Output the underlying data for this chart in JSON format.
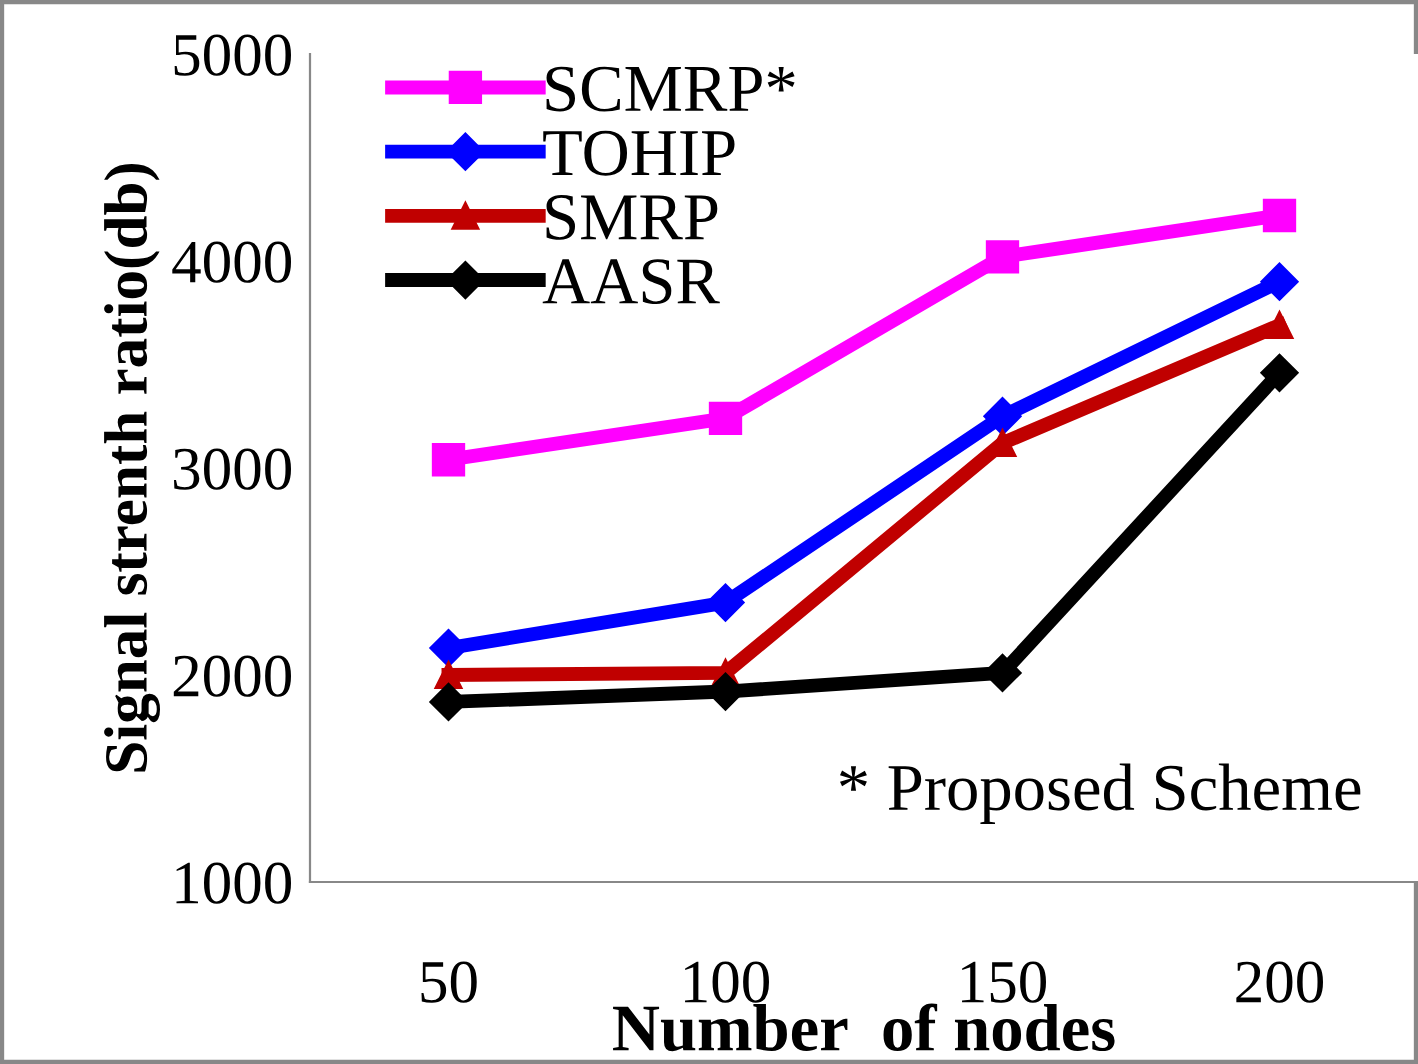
{
  "chart_data": {
    "type": "line",
    "xlabel": "Number  of nodes",
    "ylabel": "Signal strenth ratio(db)",
    "categories": [
      "50",
      "100",
      "150",
      "200"
    ],
    "series": [
      {
        "name": "SCMRP*",
        "color": "#ff00ff",
        "marker": "square",
        "values": [
          3040,
          3240,
          4020,
          4220
        ]
      },
      {
        "name": "TOHIP",
        "color": "#0000ff",
        "marker": "diamond",
        "values": [
          2130,
          2350,
          3250,
          3900
        ]
      },
      {
        "name": "SMRP",
        "color": "#c00000",
        "marker": "triangle",
        "values": [
          2000,
          2010,
          3120,
          3690
        ]
      },
      {
        "name": "AASR",
        "color": "#000000",
        "marker": "diamond",
        "values": [
          1870,
          1920,
          2010,
          3460
        ]
      }
    ],
    "ylim": [
      1000,
      5000
    ],
    "yticks": [
      1000,
      2000,
      3000,
      4000,
      5000
    ],
    "grid": false,
    "legend": "top left",
    "annotations": [
      "* Proposed Scheme"
    ]
  }
}
